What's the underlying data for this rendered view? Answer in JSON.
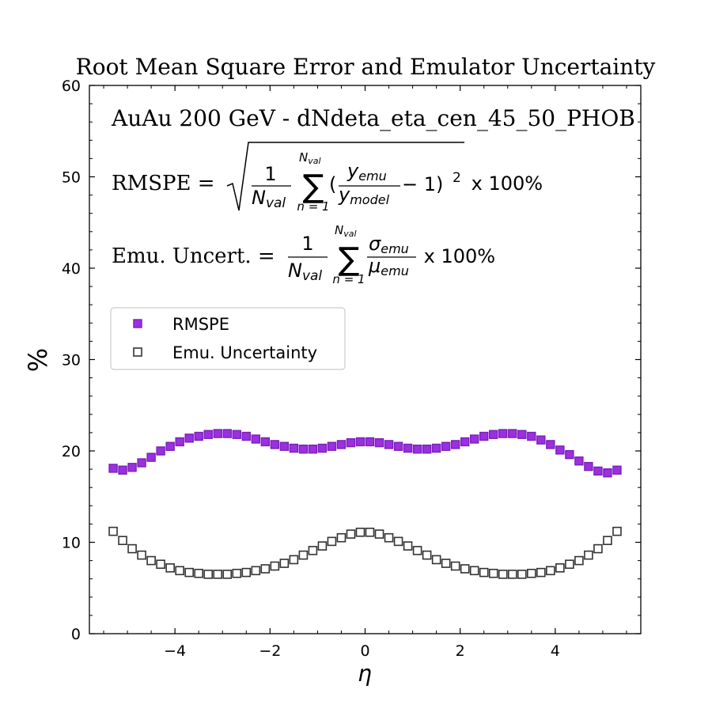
{
  "chart_data": {
    "type": "scatter",
    "title": "Root Mean Square Error and Emulator Uncertainty",
    "subtitle": "AuAu 200 GeV  -  dNdeta_eta_cen_45_50_PHOB",
    "formula_rmspe": {
      "lhs": "RMSPE = ",
      "one": "1",
      "nval": "N",
      "nval_sub": "val",
      "sum_from": "n = 1",
      "paren_open": "(",
      "y": "y",
      "emu_sub": "emu",
      "model_sub": "model",
      "minus_one": " − 1)",
      "exp": "2",
      "tail": " x 100%"
    },
    "formula_unc": {
      "lhs": "Emu. Uncert. = ",
      "one": "1",
      "nval": "N",
      "nval_sub": "val",
      "sum_from": "n = 1",
      "sigma": "σ",
      "mu": "μ",
      "emu_sub": "emu",
      "tail": " x 100%"
    },
    "xlabel": "η",
    "ylabel": "%",
    "xlim": [
      -5.8,
      5.8
    ],
    "ylim": [
      0,
      60
    ],
    "xticks": [
      -4,
      -2,
      0,
      2,
      4
    ],
    "xtick_labels": [
      "−4",
      "−2",
      "0",
      "2",
      "4"
    ],
    "yticks": [
      0,
      10,
      20,
      30,
      40,
      50,
      60
    ],
    "ytick_labels": [
      "0",
      "10",
      "20",
      "30",
      "40",
      "50",
      "60"
    ],
    "grid": false,
    "legend_position": "upper-left",
    "x": [
      -5.3,
      -5.1,
      -4.9,
      -4.7,
      -4.5,
      -4.3,
      -4.1,
      -3.9,
      -3.7,
      -3.5,
      -3.3,
      -3.1,
      -2.9,
      -2.7,
      -2.5,
      -2.3,
      -2.1,
      -1.9,
      -1.7,
      -1.5,
      -1.3,
      -1.1,
      -0.9,
      -0.7,
      -0.5,
      -0.3,
      -0.1,
      0.1,
      0.3,
      0.5,
      0.7,
      0.9,
      1.1,
      1.3,
      1.5,
      1.7,
      1.9,
      2.1,
      2.3,
      2.5,
      2.7,
      2.9,
      3.1,
      3.3,
      3.5,
      3.7,
      3.9,
      4.1,
      4.3,
      4.5,
      4.7,
      4.9,
      5.1,
      5.3
    ],
    "series": [
      {
        "name": "RMSPE",
        "marker": "filled-square",
        "color": "#9b30e0",
        "values": [
          18.1,
          17.9,
          18.2,
          18.7,
          19.3,
          20.0,
          20.5,
          21.0,
          21.4,
          21.6,
          21.8,
          21.9,
          21.9,
          21.8,
          21.6,
          21.3,
          21.0,
          20.7,
          20.5,
          20.3,
          20.2,
          20.2,
          20.3,
          20.5,
          20.7,
          20.9,
          21.0,
          21.0,
          20.9,
          20.7,
          20.5,
          20.3,
          20.2,
          20.2,
          20.3,
          20.5,
          20.7,
          21.0,
          21.3,
          21.6,
          21.8,
          21.9,
          21.9,
          21.8,
          21.6,
          21.2,
          20.7,
          20.1,
          19.6,
          18.9,
          18.3,
          17.8,
          17.6,
          17.9
        ]
      },
      {
        "name": "Emu. Uncertainty",
        "marker": "open-square",
        "color": "#333333",
        "values": [
          11.2,
          10.2,
          9.3,
          8.6,
          8.0,
          7.6,
          7.2,
          6.9,
          6.7,
          6.6,
          6.5,
          6.5,
          6.5,
          6.6,
          6.7,
          6.9,
          7.1,
          7.4,
          7.7,
          8.1,
          8.6,
          9.1,
          9.6,
          10.1,
          10.5,
          10.9,
          11.1,
          11.1,
          10.9,
          10.5,
          10.1,
          9.6,
          9.1,
          8.6,
          8.1,
          7.7,
          7.4,
          7.1,
          6.9,
          6.7,
          6.6,
          6.5,
          6.5,
          6.5,
          6.6,
          6.7,
          6.9,
          7.2,
          7.6,
          8.0,
          8.6,
          9.3,
          10.2,
          11.2
        ]
      }
    ]
  }
}
